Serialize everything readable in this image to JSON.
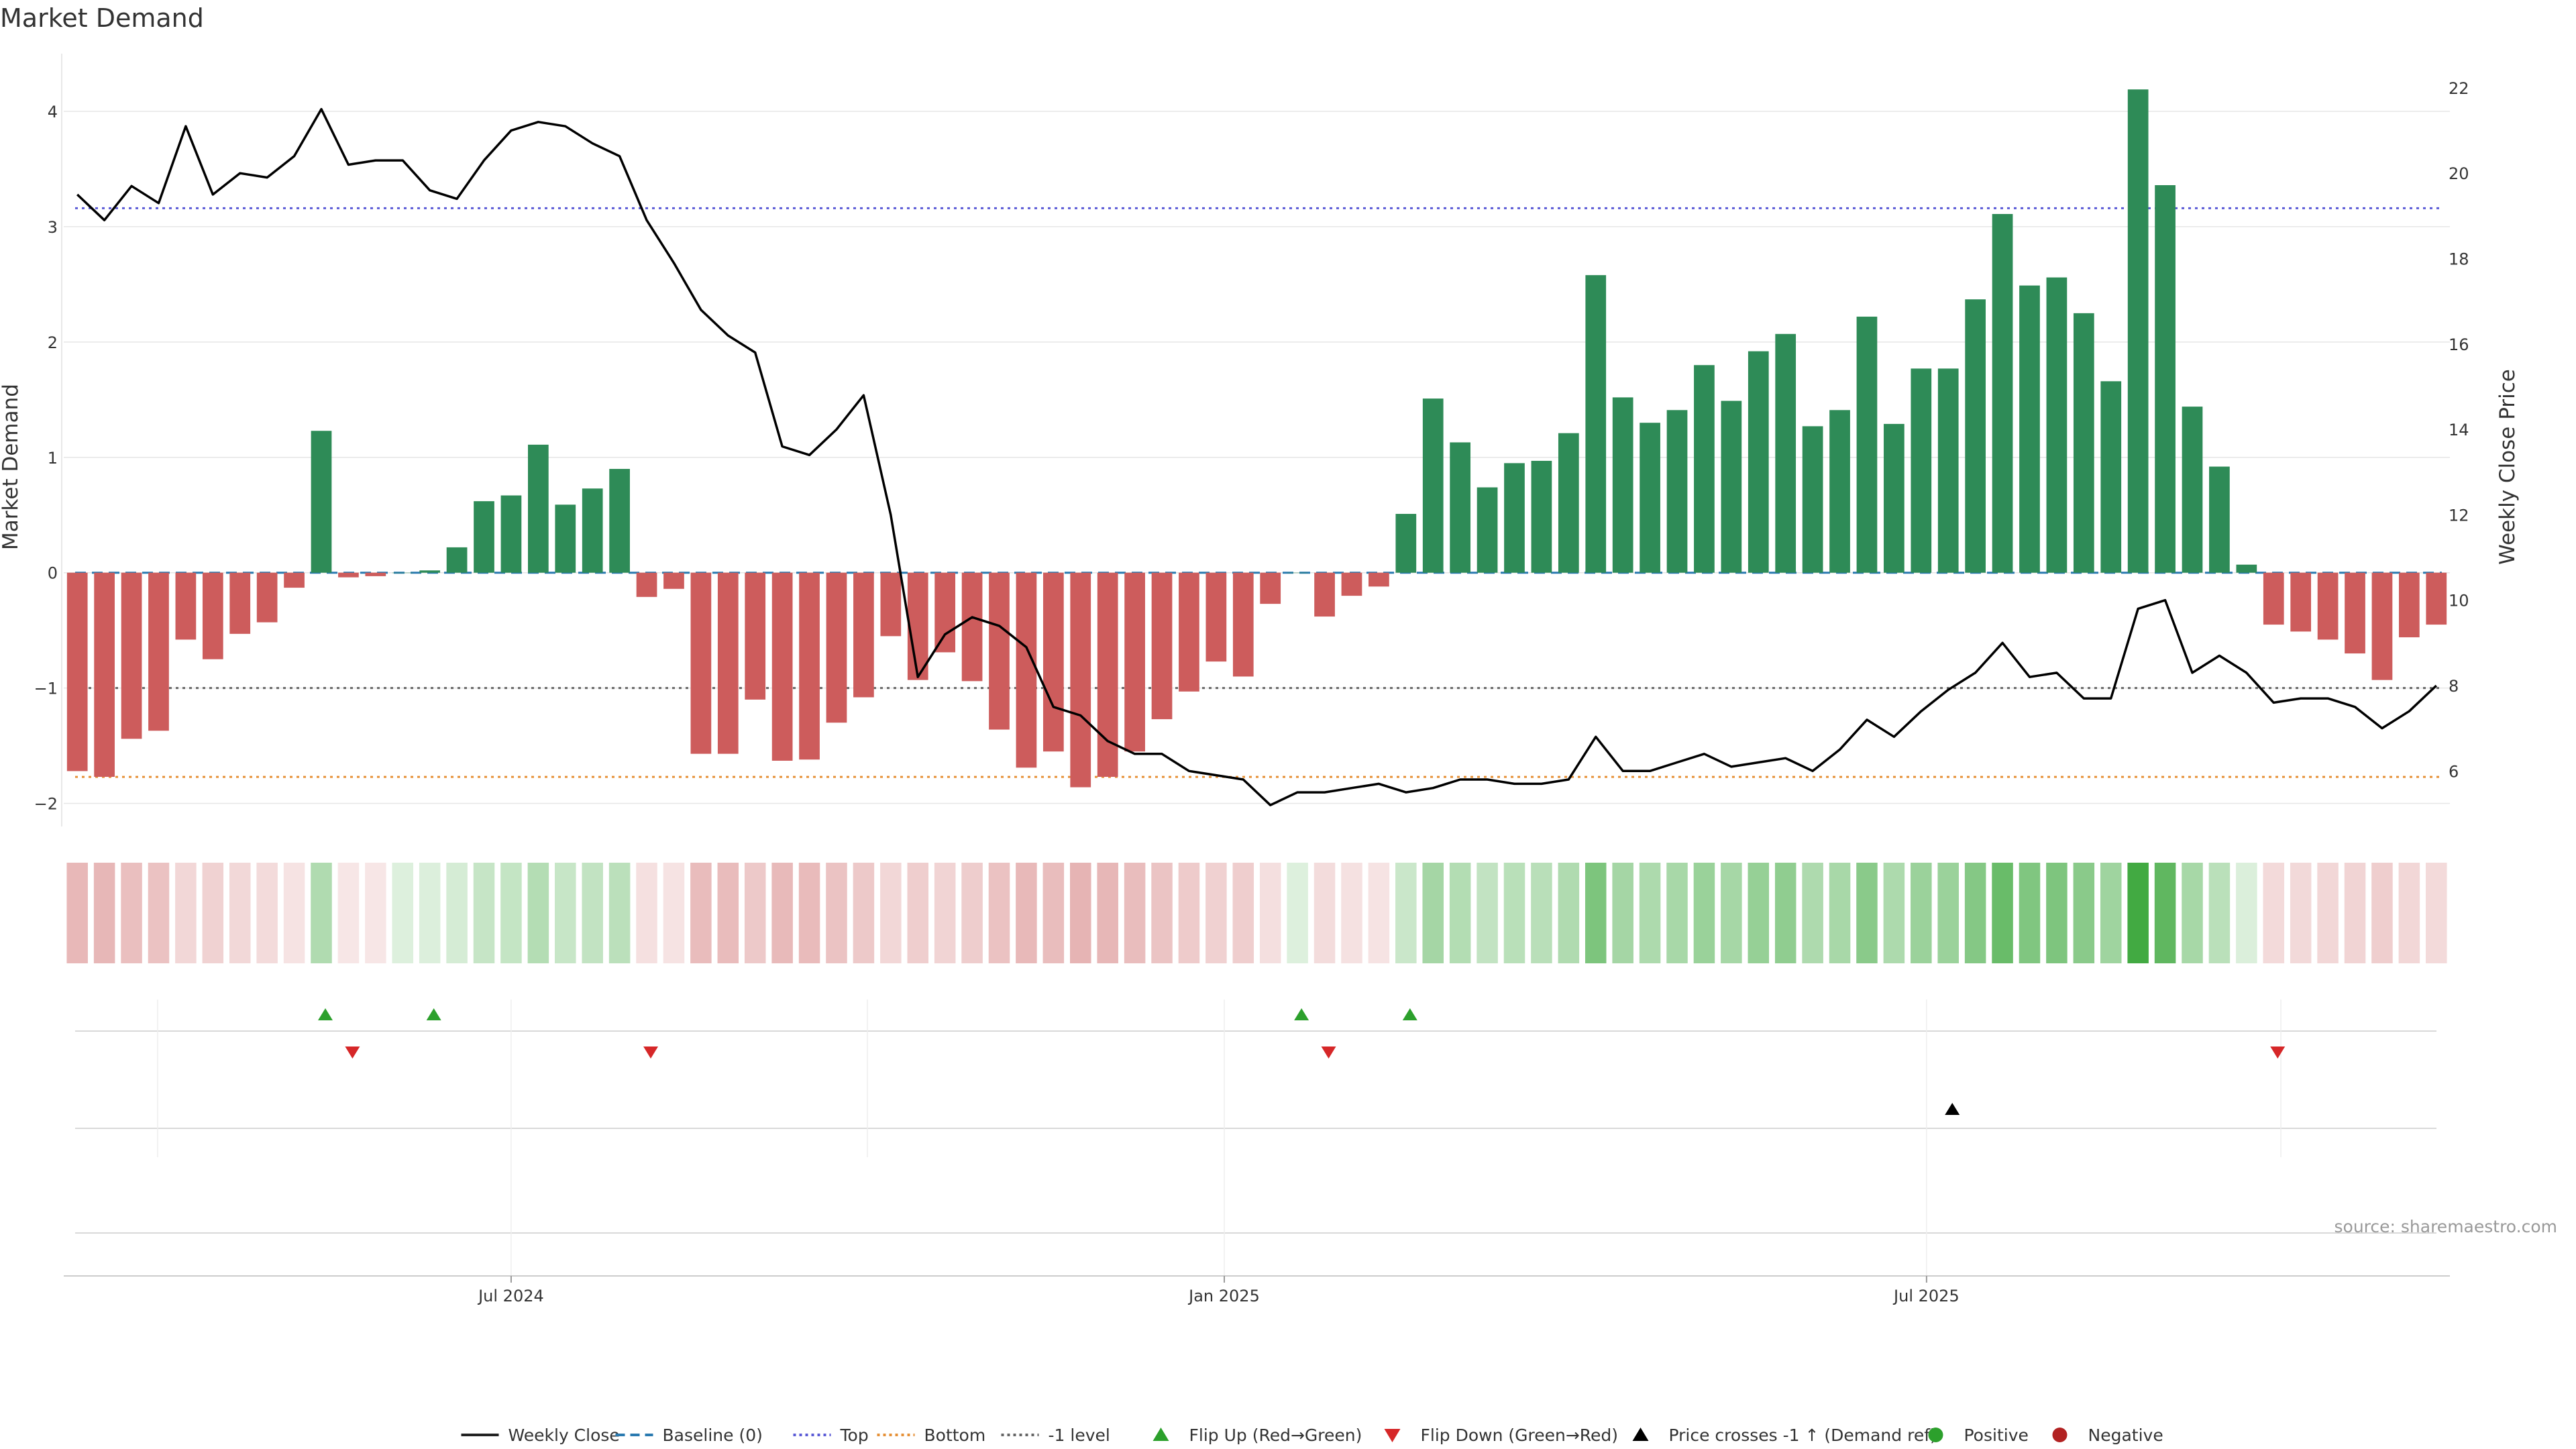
{
  "chart_data": {
    "type": "bar",
    "title": "Market Demand",
    "ylabel": "Market Demand",
    "y2label": "Weekly Close Price",
    "ylim": [
      -2.2,
      4.5
    ],
    "y2lim": [
      4.7,
      22.8
    ],
    "yticks": [
      "−2",
      "−1",
      "0",
      "1",
      "2",
      "3",
      "4"
    ],
    "ytick_values": [
      -2,
      -1,
      0,
      1,
      2,
      3,
      4
    ],
    "y2ticks": [
      "6",
      "8",
      "10",
      "12",
      "14",
      "16",
      "18",
      "20",
      "22"
    ],
    "y2tick_values": [
      6,
      8,
      10,
      12,
      14,
      16,
      18,
      20,
      22
    ],
    "xticks": [
      {
        "label": "Jul 2024",
        "index": 16.5
      },
      {
        "label": "Jan 2025",
        "index": 42.8
      },
      {
        "label": "Jul 2025",
        "index": 68.7
      }
    ],
    "grid": true,
    "legend_position": "bottom",
    "reference_lines": {
      "baseline": 0,
      "top": 3.16,
      "bottom": -1.77,
      "minus_one": -1
    },
    "positive_color": "#2e8b57",
    "negative_color": "#cd5c5c",
    "price_color": "#000000",
    "top_color": "#5b5bd6",
    "bottom_color": "#e69138",
    "baseline_color": "#2a7ab0",
    "series": [
      {
        "name": "Market Demand",
        "values": [
          -1.72,
          -1.77,
          -1.44,
          -1.37,
          -0.58,
          -0.75,
          -0.53,
          -0.43,
          -0.13,
          1.23,
          -0.04,
          -0.03,
          0.0,
          0.02,
          0.22,
          0.62,
          0.67,
          1.11,
          0.59,
          0.73,
          0.9,
          -0.21,
          -0.14,
          -1.57,
          -1.57,
          -1.1,
          -1.63,
          -1.62,
          -1.3,
          -1.08,
          -0.55,
          -0.93,
          -0.69,
          -0.94,
          -1.36,
          -1.69,
          -1.55,
          -1.86,
          -1.77,
          -1.55,
          -1.27,
          -1.03,
          -0.77,
          -0.9,
          -0.27,
          0.0,
          -0.38,
          -0.2,
          -0.12,
          0.51,
          1.51,
          1.13,
          0.74,
          0.95,
          0.97,
          1.21,
          2.58,
          1.52,
          1.3,
          1.41,
          1.8,
          1.49,
          1.92,
          2.07,
          1.27,
          1.41,
          2.22,
          1.29,
          1.77,
          1.77,
          2.37,
          3.11,
          2.49,
          2.56,
          2.25,
          1.66,
          4.19,
          3.36,
          1.44,
          0.92,
          0.07,
          -0.45,
          -0.51,
          -0.58,
          -0.7,
          -0.93,
          -0.56,
          -0.45
        ]
      },
      {
        "name": "Weekly Close",
        "values": [
          19.5,
          18.9,
          19.7,
          19.3,
          21.1,
          19.5,
          20.0,
          19.9,
          20.4,
          21.5,
          20.2,
          20.3,
          20.3,
          19.6,
          19.4,
          20.3,
          21.0,
          21.2,
          21.1,
          20.7,
          20.4,
          18.9,
          17.9,
          16.8,
          16.2,
          15.8,
          13.6,
          13.4,
          14.0,
          14.8,
          12.0,
          8.2,
          9.2,
          9.6,
          9.4,
          8.9,
          7.5,
          7.3,
          6.7,
          6.4,
          6.4,
          6.0,
          5.9,
          5.8,
          5.2,
          5.5,
          5.5,
          5.6,
          5.7,
          5.5,
          5.6,
          5.8,
          5.8,
          5.7,
          5.7,
          5.8,
          6.8,
          6.0,
          6.0,
          6.2,
          6.4,
          6.1,
          6.2,
          6.3,
          6.0,
          6.5,
          7.2,
          6.8,
          7.4,
          7.9,
          8.3,
          9.0,
          8.2,
          8.3,
          7.7,
          7.7,
          9.8,
          10.0,
          8.3,
          8.7,
          8.3,
          7.6,
          7.7,
          7.7,
          7.5,
          7.0,
          7.4,
          8.0
        ]
      }
    ],
    "flip_up_indices": [
      9,
      13,
      45,
      49
    ],
    "flip_down_indices": [
      10,
      21,
      46,
      81
    ],
    "price_cross_indices": [
      69
    ],
    "legend": [
      {
        "label": "Weekly Close",
        "kind": "line",
        "color": "#222222"
      },
      {
        "label": "Baseline (0)",
        "kind": "dash",
        "color": "#2a7ab0"
      },
      {
        "label": "Top",
        "kind": "dot",
        "color": "#5b5bd6"
      },
      {
        "label": "Bottom",
        "kind": "dot",
        "color": "#e69138"
      },
      {
        "label": "-1 level",
        "kind": "dot",
        "color": "#666666"
      },
      {
        "label": "Flip Up (Red→Green)",
        "kind": "tri-up",
        "color": "#2ca02c"
      },
      {
        "label": "Flip Down (Green→Red)",
        "kind": "tri-down",
        "color": "#d62728"
      },
      {
        "label": "Price crosses -1 ↑ (Demand ref)",
        "kind": "tri-up",
        "color": "#000000"
      },
      {
        "label": "Positive",
        "kind": "circle",
        "color": "#2ca02c"
      },
      {
        "label": "Negative",
        "kind": "circle",
        "color": "#b22222"
      }
    ],
    "source": "source: sharemaestro.com"
  }
}
